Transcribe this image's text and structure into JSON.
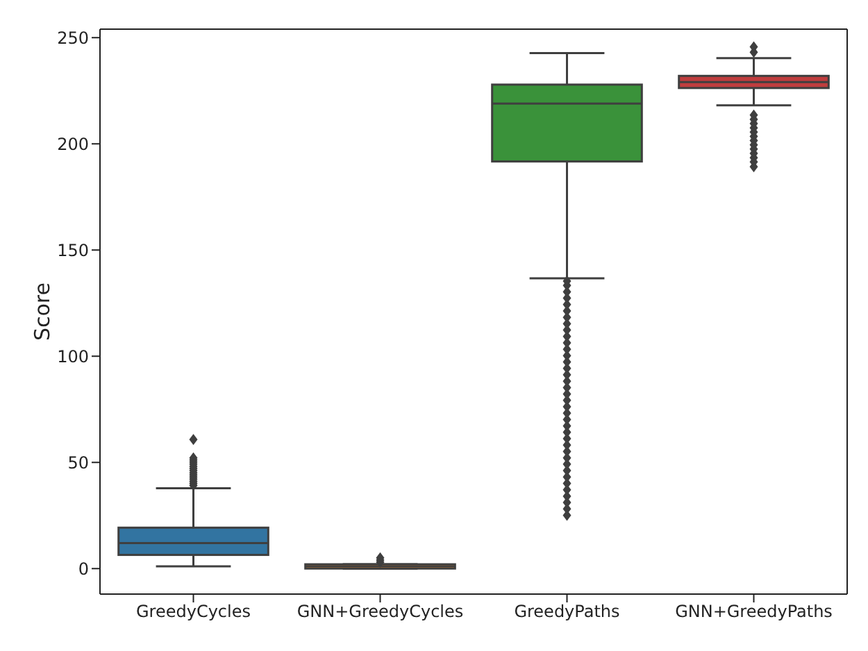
{
  "chart_data": {
    "type": "box",
    "ylabel": "Score",
    "categories": [
      "GreedyCycles",
      "GNN+GreedyCycles",
      "GreedyPaths",
      "GNN+GreedyPaths"
    ],
    "colors": [
      "#3274a1",
      "#e1812c",
      "#3a923a",
      "#c03d3e"
    ],
    "marker": "diamond",
    "boxes": [
      {
        "low": 1,
        "q1": 6.4,
        "median": 12,
        "q3": 19.2,
        "high": 37.7,
        "outliers": [
          39,
          40,
          41,
          42,
          43,
          44,
          45,
          46,
          47,
          48,
          49,
          50,
          51,
          52,
          60.6
        ]
      },
      {
        "low": 0,
        "q1": 0,
        "median": 1,
        "q3": 2,
        "high": 2,
        "outliers": [
          3,
          4,
          5
        ]
      },
      {
        "low": 136.3,
        "q1": 191.2,
        "median": 218.4,
        "q3": 227.3,
        "high": 242.1,
        "outliers": [
          25,
          28,
          31,
          34,
          37,
          40,
          43,
          46,
          49,
          52,
          55,
          58,
          61,
          64,
          67,
          70,
          73,
          76,
          79,
          82,
          85,
          88,
          91,
          94,
          97,
          100,
          103,
          106,
          109,
          112,
          115,
          118,
          121,
          124,
          127,
          130,
          133,
          135
        ]
      },
      {
        "low": 217.6,
        "q1": 225.7,
        "median": 228.5,
        "q3": 231.4,
        "high": 239.7,
        "outliers": [
          188.7,
          191,
          193,
          195,
          197,
          199,
          201,
          203,
          205,
          207,
          209,
          211,
          213,
          242.5,
          245
        ]
      }
    ],
    "ylim": [
      -12,
      254
    ],
    "yticks": [
      0,
      50,
      100,
      150,
      200,
      250
    ]
  }
}
